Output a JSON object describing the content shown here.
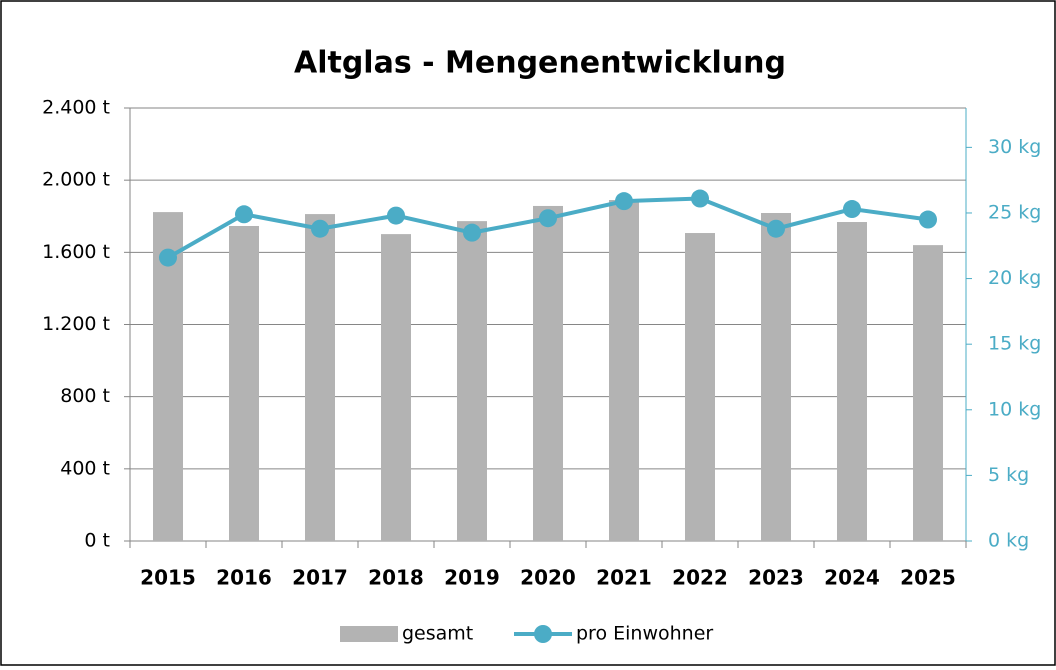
{
  "chart_data": {
    "type": "bar-line",
    "title": "Altglas - Mengenentwicklung",
    "categories": [
      "2015",
      "2016",
      "2017",
      "2018",
      "2019",
      "2020",
      "2021",
      "2022",
      "2023",
      "2024",
      "2025"
    ],
    "series": [
      {
        "name": "gesamt",
        "type": "bar",
        "color": "#b3b3b3",
        "values": [
          1823,
          1746,
          1812,
          1701,
          1773,
          1857,
          1890,
          1707,
          1818,
          1768,
          1640
        ]
      },
      {
        "name": "pro Einwohner",
        "type": "line",
        "axis": "y2",
        "color": "#4bacc6",
        "values": [
          21.6,
          24.9,
          23.8,
          24.8,
          23.5,
          24.6,
          25.9,
          26.1,
          23.8,
          25.3,
          24.5
        ]
      }
    ],
    "ylim": [
      0,
      2400
    ],
    "yticks": [
      {
        "value": 0,
        "label": "0 t"
      },
      {
        "value": 400,
        "label": "400 t"
      },
      {
        "value": 800,
        "label": "800 t"
      },
      {
        "value": 1200,
        "label": "1.200 t"
      },
      {
        "value": 1600,
        "label": "1.600 t"
      },
      {
        "value": 2000,
        "label": "2.000 t"
      },
      {
        "value": 2400,
        "label": "2.400 t"
      }
    ],
    "y2lim": [
      0,
      33
    ],
    "y2ticks": [
      {
        "value": 0,
        "label": "0 kg"
      },
      {
        "value": 5,
        "label": "5 kg"
      },
      {
        "value": 10,
        "label": "10 kg"
      },
      {
        "value": 15,
        "label": "15 kg"
      },
      {
        "value": 20,
        "label": "20 kg"
      },
      {
        "value": 25,
        "label": "25 kg"
      },
      {
        "value": 30,
        "label": "30 kg"
      }
    ],
    "grid": true,
    "legend": "bottom"
  }
}
